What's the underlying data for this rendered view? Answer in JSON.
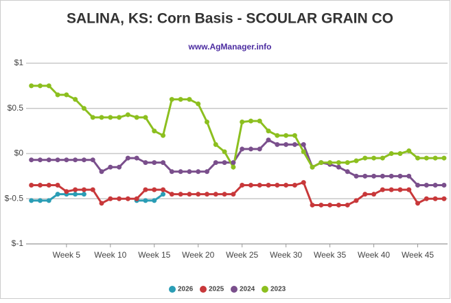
{
  "chart_data": {
    "type": "line",
    "title": "SALINA, KS: Corn Basis - SCOULAR GRAIN CO",
    "subtitle": "www.AgManager.info",
    "x": [
      1,
      2,
      3,
      4,
      5,
      6,
      7,
      8,
      9,
      10,
      11,
      12,
      13,
      14,
      15,
      16,
      17,
      18,
      19,
      20,
      21,
      22,
      23,
      24,
      25,
      26,
      27,
      28,
      29,
      30,
      31,
      32,
      33,
      34,
      35,
      36,
      37,
      38,
      39,
      40,
      41,
      42,
      43,
      44,
      45,
      46,
      47,
      48
    ],
    "xlim": [
      0.4,
      48.4
    ],
    "xticks": [
      {
        "value": 5,
        "label": "Week 5"
      },
      {
        "value": 10,
        "label": "Week 10"
      },
      {
        "value": 15,
        "label": "Week 15"
      },
      {
        "value": 20,
        "label": "Week 20"
      },
      {
        "value": 25,
        "label": "Week 25"
      },
      {
        "value": 30,
        "label": "Week 30"
      },
      {
        "value": 35,
        "label": "Week 35"
      },
      {
        "value": 40,
        "label": "Week 40"
      },
      {
        "value": 45,
        "label": "Week 45"
      }
    ],
    "ylim": [
      -1,
      1
    ],
    "yticks": [
      {
        "value": -1,
        "label": "$-1"
      },
      {
        "value": -0.5,
        "label": "$-0.5"
      },
      {
        "value": 0,
        "label": "$0"
      },
      {
        "value": 0.5,
        "label": "$0.5"
      },
      {
        "value": 1,
        "label": "$1"
      }
    ],
    "grid": true,
    "legend": "bottom",
    "series": [
      {
        "name": "2026",
        "color": "#2a9db5",
        "values": [
          -0.52,
          -0.52,
          -0.52,
          -0.45,
          -0.45,
          -0.45,
          -0.45,
          null,
          null,
          null,
          null,
          null,
          -0.52,
          -0.52,
          -0.52,
          -0.45,
          null,
          null,
          null,
          null,
          null,
          null,
          null,
          null,
          null,
          null,
          null,
          null,
          null,
          null,
          null,
          null,
          null,
          null,
          null,
          null,
          null,
          null,
          null,
          null,
          null,
          null,
          null,
          null,
          null,
          null,
          null,
          null
        ]
      },
      {
        "name": "2025",
        "color": "#c8383a",
        "values": [
          -0.35,
          -0.35,
          -0.35,
          -0.35,
          -0.42,
          -0.4,
          -0.4,
          -0.4,
          -0.55,
          -0.5,
          -0.5,
          -0.5,
          -0.5,
          -0.4,
          -0.4,
          -0.4,
          -0.45,
          -0.45,
          -0.45,
          -0.45,
          -0.45,
          -0.45,
          -0.45,
          -0.45,
          -0.35,
          -0.35,
          -0.35,
          -0.35,
          -0.35,
          -0.35,
          -0.35,
          -0.32,
          -0.57,
          -0.57,
          -0.57,
          -0.57,
          -0.57,
          -0.52,
          -0.45,
          -0.45,
          -0.4,
          -0.4,
          -0.4,
          -0.4,
          -0.55,
          -0.5,
          -0.5,
          -0.5
        ]
      },
      {
        "name": "2024",
        "color": "#7a4f8c",
        "values": [
          -0.07,
          -0.07,
          -0.07,
          -0.07,
          -0.07,
          -0.07,
          -0.07,
          -0.07,
          -0.2,
          -0.15,
          -0.15,
          -0.05,
          -0.05,
          -0.1,
          -0.1,
          -0.1,
          -0.2,
          -0.2,
          -0.2,
          -0.2,
          -0.2,
          -0.1,
          -0.1,
          -0.1,
          0.05,
          0.05,
          0.05,
          0.15,
          0.1,
          0.1,
          0.1,
          0.1,
          -0.15,
          -0.1,
          -0.12,
          -0.15,
          -0.2,
          -0.25,
          -0.25,
          -0.25,
          -0.25,
          -0.25,
          -0.25,
          -0.25,
          -0.35,
          -0.35,
          -0.35,
          -0.35
        ]
      },
      {
        "name": "2023",
        "color": "#8cbf1f",
        "values": [
          0.75,
          0.75,
          0.75,
          0.65,
          0.65,
          0.6,
          0.5,
          0.4,
          0.4,
          0.4,
          0.4,
          0.43,
          0.4,
          0.4,
          0.25,
          0.2,
          0.6,
          0.6,
          0.6,
          0.55,
          0.35,
          0.1,
          0.02,
          -0.15,
          0.35,
          0.36,
          0.36,
          0.25,
          0.2,
          0.2,
          0.2,
          0.02,
          -0.15,
          -0.1,
          -0.1,
          -0.1,
          -0.1,
          -0.08,
          -0.05,
          -0.05,
          -0.05,
          0.0,
          0.0,
          0.03,
          -0.05,
          -0.05,
          -0.05,
          -0.05
        ]
      }
    ]
  }
}
